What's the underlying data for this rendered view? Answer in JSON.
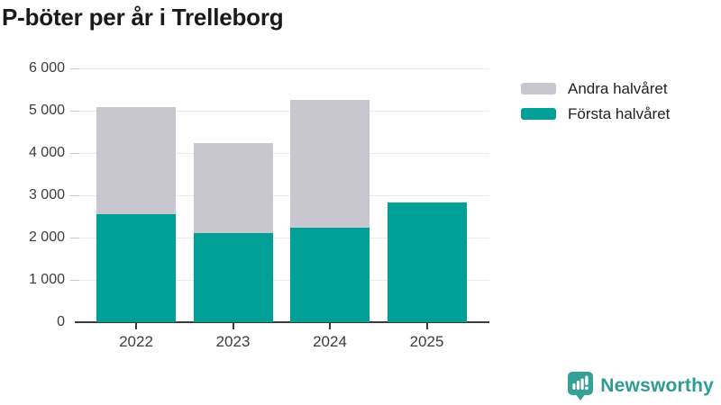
{
  "title": "P-böter per år i Trelleborg",
  "chart_data": {
    "type": "bar",
    "stacked": true,
    "title": "P-böter per år i Trelleborg",
    "categories": [
      "2022",
      "2023",
      "2024",
      "2025"
    ],
    "series": [
      {
        "name": "Första halvåret",
        "color": "#00A096",
        "values": [
          2550,
          2100,
          2230,
          2840
        ]
      },
      {
        "name": "Andra halvåret",
        "color": "#C8C7D0",
        "values": [
          2530,
          2130,
          3020,
          0
        ]
      }
    ],
    "totals": [
      5080,
      4230,
      5250,
      2840
    ],
    "xlabel": "",
    "ylabel": "",
    "ylim": [
      0,
      6000
    ],
    "yticks": [
      {
        "value": 0,
        "label": "0"
      },
      {
        "value": 1000,
        "label": "1 000"
      },
      {
        "value": 2000,
        "label": "2 000"
      },
      {
        "value": 3000,
        "label": "3 000"
      },
      {
        "value": 4000,
        "label": "4 000"
      },
      {
        "value": 5000,
        "label": "5 000"
      },
      {
        "value": 6000,
        "label": "6 000"
      }
    ],
    "grid": "horizontal",
    "legend_position": "top-right",
    "legend_order": [
      "Andra halvåret",
      "Första halvåret"
    ],
    "uncertain_top_edge": {
      "series": "Första halvåret",
      "category": "2022"
    }
  },
  "branding": {
    "name": "Newsworthy",
    "icon": "newsworthy-chart-bubble-icon",
    "color": "#2E9C92"
  },
  "colors": {
    "first_half": "#00A096",
    "second_half": "#C8C7D0",
    "axis_line": "#3B3B3B",
    "tick_label": "#3D3D3D",
    "gridline": "#EAEAEC",
    "title": "#1A1A1A",
    "legend_text": "#222222",
    "background": "#FFFFFF"
  }
}
